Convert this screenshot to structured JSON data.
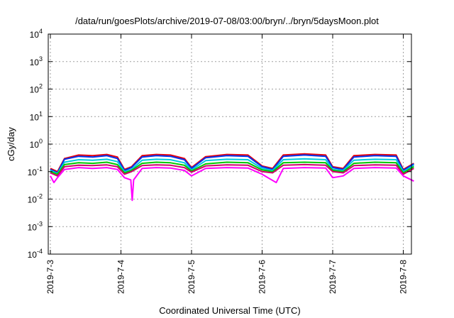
{
  "chart_data": {
    "type": "line",
    "title": "/data/run/goesPlots/archive/2019-07-08/03:00/bryn/../bryn/5daysMoon.plot",
    "xlabel": "Coordinated Universal Time (UTC)",
    "ylabel": "cGy/day",
    "yscale": "log",
    "ylim": [
      0.0001,
      10000
    ],
    "xlim_days": [
      0,
      5.15
    ],
    "x_ticks": [
      {
        "label": "2019-7-3",
        "value": 0
      },
      {
        "label": "2019-7-4",
        "value": 1
      },
      {
        "label": "2019-7-5",
        "value": 2
      },
      {
        "label": "2019-7-6",
        "value": 3
      },
      {
        "label": "2019-7-7",
        "value": 4
      },
      {
        "label": "2019-7-8",
        "value": 5
      }
    ],
    "y_ticks": [
      {
        "base": "10",
        "exp": "-4",
        "value": 0.0001
      },
      {
        "base": "10",
        "exp": "-3",
        "value": 0.001
      },
      {
        "base": "10",
        "exp": "-2",
        "value": 0.01
      },
      {
        "base": "10",
        "exp": "-1",
        "value": 0.1
      },
      {
        "base": "10",
        "exp": "0",
        "value": 1
      },
      {
        "base": "10",
        "exp": "1",
        "value": 10
      },
      {
        "base": "10",
        "exp": "2",
        "value": 100
      },
      {
        "base": "10",
        "exp": "3",
        "value": 1000
      },
      {
        "base": "10",
        "exp": "4",
        "value": 10000
      }
    ],
    "grid": true,
    "legend": "none",
    "x_unit": "days from 2019-7-3 00:00 UTC",
    "series": [
      {
        "color": "#e8000b",
        "values": [
          [
            0,
            0.13
          ],
          [
            0.1,
            0.1
          ],
          [
            0.2,
            0.3
          ],
          [
            0.4,
            0.4
          ],
          [
            0.6,
            0.38
          ],
          [
            0.8,
            0.42
          ],
          [
            0.95,
            0.34
          ],
          [
            1.05,
            0.12
          ],
          [
            1.15,
            0.15
          ],
          [
            1.3,
            0.38
          ],
          [
            1.5,
            0.42
          ],
          [
            1.7,
            0.4
          ],
          [
            1.9,
            0.3
          ],
          [
            2.0,
            0.14
          ],
          [
            2.2,
            0.35
          ],
          [
            2.5,
            0.42
          ],
          [
            2.8,
            0.4
          ],
          [
            3.0,
            0.16
          ],
          [
            3.15,
            0.13
          ],
          [
            3.3,
            0.4
          ],
          [
            3.6,
            0.44
          ],
          [
            3.9,
            0.4
          ],
          [
            4.0,
            0.15
          ],
          [
            4.15,
            0.13
          ],
          [
            4.3,
            0.38
          ],
          [
            4.6,
            0.42
          ],
          [
            4.9,
            0.4
          ],
          [
            5.0,
            0.12
          ],
          [
            5.15,
            0.2
          ]
        ]
      },
      {
        "color": "#0033ee",
        "values": [
          [
            0,
            0.12
          ],
          [
            0.1,
            0.09
          ],
          [
            0.2,
            0.28
          ],
          [
            0.4,
            0.36
          ],
          [
            0.6,
            0.34
          ],
          [
            0.8,
            0.38
          ],
          [
            0.95,
            0.3
          ],
          [
            1.05,
            0.11
          ],
          [
            1.15,
            0.14
          ],
          [
            1.3,
            0.34
          ],
          [
            1.5,
            0.38
          ],
          [
            1.7,
            0.36
          ],
          [
            1.9,
            0.27
          ],
          [
            2.0,
            0.13
          ],
          [
            2.2,
            0.32
          ],
          [
            2.5,
            0.38
          ],
          [
            2.8,
            0.36
          ],
          [
            3.0,
            0.15
          ],
          [
            3.15,
            0.12
          ],
          [
            3.3,
            0.36
          ],
          [
            3.6,
            0.4
          ],
          [
            3.9,
            0.36
          ],
          [
            4.0,
            0.14
          ],
          [
            4.15,
            0.12
          ],
          [
            4.3,
            0.34
          ],
          [
            4.6,
            0.38
          ],
          [
            4.9,
            0.36
          ],
          [
            5.0,
            0.11
          ],
          [
            5.15,
            0.19
          ]
        ]
      },
      {
        "color": "#00c8e0",
        "values": [
          [
            0,
            0.11
          ],
          [
            0.1,
            0.085
          ],
          [
            0.2,
            0.22
          ],
          [
            0.4,
            0.27
          ],
          [
            0.6,
            0.26
          ],
          [
            0.8,
            0.28
          ],
          [
            0.95,
            0.23
          ],
          [
            1.05,
            0.1
          ],
          [
            1.15,
            0.12
          ],
          [
            1.3,
            0.26
          ],
          [
            1.5,
            0.28
          ],
          [
            1.7,
            0.27
          ],
          [
            1.9,
            0.21
          ],
          [
            2.0,
            0.115
          ],
          [
            2.2,
            0.25
          ],
          [
            2.5,
            0.28
          ],
          [
            2.8,
            0.27
          ],
          [
            3.0,
            0.13
          ],
          [
            3.15,
            0.11
          ],
          [
            3.3,
            0.27
          ],
          [
            3.6,
            0.29
          ],
          [
            3.9,
            0.27
          ],
          [
            4.0,
            0.12
          ],
          [
            4.15,
            0.11
          ],
          [
            4.3,
            0.26
          ],
          [
            4.6,
            0.28
          ],
          [
            4.9,
            0.27
          ],
          [
            5.0,
            0.1
          ],
          [
            5.15,
            0.17
          ]
        ]
      },
      {
        "color": "#00c800",
        "values": [
          [
            0,
            0.1
          ],
          [
            0.1,
            0.08
          ],
          [
            0.2,
            0.18
          ],
          [
            0.4,
            0.21
          ],
          [
            0.6,
            0.2
          ],
          [
            0.8,
            0.22
          ],
          [
            0.95,
            0.18
          ],
          [
            1.05,
            0.09
          ],
          [
            1.15,
            0.11
          ],
          [
            1.3,
            0.2
          ],
          [
            1.5,
            0.22
          ],
          [
            1.7,
            0.21
          ],
          [
            1.9,
            0.17
          ],
          [
            2.0,
            0.105
          ],
          [
            2.2,
            0.19
          ],
          [
            2.5,
            0.22
          ],
          [
            2.8,
            0.21
          ],
          [
            3.0,
            0.115
          ],
          [
            3.15,
            0.1
          ],
          [
            3.3,
            0.21
          ],
          [
            3.6,
            0.22
          ],
          [
            3.9,
            0.21
          ],
          [
            4.0,
            0.11
          ],
          [
            4.15,
            0.1
          ],
          [
            4.3,
            0.2
          ],
          [
            4.6,
            0.22
          ],
          [
            4.9,
            0.21
          ],
          [
            5.0,
            0.09
          ],
          [
            5.15,
            0.15
          ]
        ]
      },
      {
        "color": "#d0006a",
        "values": [
          [
            0,
            0.09
          ],
          [
            0.1,
            0.07
          ],
          [
            0.2,
            0.15
          ],
          [
            0.4,
            0.17
          ],
          [
            0.6,
            0.165
          ],
          [
            0.8,
            0.175
          ],
          [
            0.95,
            0.15
          ],
          [
            1.05,
            0.08
          ],
          [
            1.15,
            0.1
          ],
          [
            1.3,
            0.165
          ],
          [
            1.5,
            0.175
          ],
          [
            1.7,
            0.17
          ],
          [
            1.9,
            0.14
          ],
          [
            2.0,
            0.095
          ],
          [
            2.2,
            0.16
          ],
          [
            2.5,
            0.175
          ],
          [
            2.8,
            0.17
          ],
          [
            3.0,
            0.1
          ],
          [
            3.15,
            0.09
          ],
          [
            3.3,
            0.17
          ],
          [
            3.6,
            0.18
          ],
          [
            3.9,
            0.17
          ],
          [
            4.0,
            0.1
          ],
          [
            4.15,
            0.09
          ],
          [
            4.3,
            0.165
          ],
          [
            4.6,
            0.175
          ],
          [
            4.9,
            0.17
          ],
          [
            5.0,
            0.08
          ],
          [
            5.15,
            0.13
          ]
        ]
      },
      {
        "color": "#ff00ff",
        "values": [
          [
            0,
            0.07
          ],
          [
            0.05,
            0.04
          ],
          [
            0.1,
            0.06
          ],
          [
            0.2,
            0.12
          ],
          [
            0.4,
            0.14
          ],
          [
            0.6,
            0.13
          ],
          [
            0.8,
            0.14
          ],
          [
            0.95,
            0.12
          ],
          [
            1.05,
            0.06
          ],
          [
            1.14,
            0.05
          ],
          [
            1.16,
            0.009
          ],
          [
            1.18,
            0.05
          ],
          [
            1.3,
            0.13
          ],
          [
            1.5,
            0.14
          ],
          [
            1.7,
            0.135
          ],
          [
            1.9,
            0.11
          ],
          [
            2.0,
            0.07
          ],
          [
            2.2,
            0.13
          ],
          [
            2.5,
            0.14
          ],
          [
            2.8,
            0.135
          ],
          [
            3.0,
            0.08
          ],
          [
            3.2,
            0.04
          ],
          [
            3.3,
            0.13
          ],
          [
            3.6,
            0.14
          ],
          [
            3.9,
            0.135
          ],
          [
            4.0,
            0.06
          ],
          [
            4.15,
            0.07
          ],
          [
            4.3,
            0.13
          ],
          [
            4.6,
            0.14
          ],
          [
            4.9,
            0.135
          ],
          [
            5.0,
            0.07
          ],
          [
            5.15,
            0.045
          ]
        ]
      }
    ]
  }
}
